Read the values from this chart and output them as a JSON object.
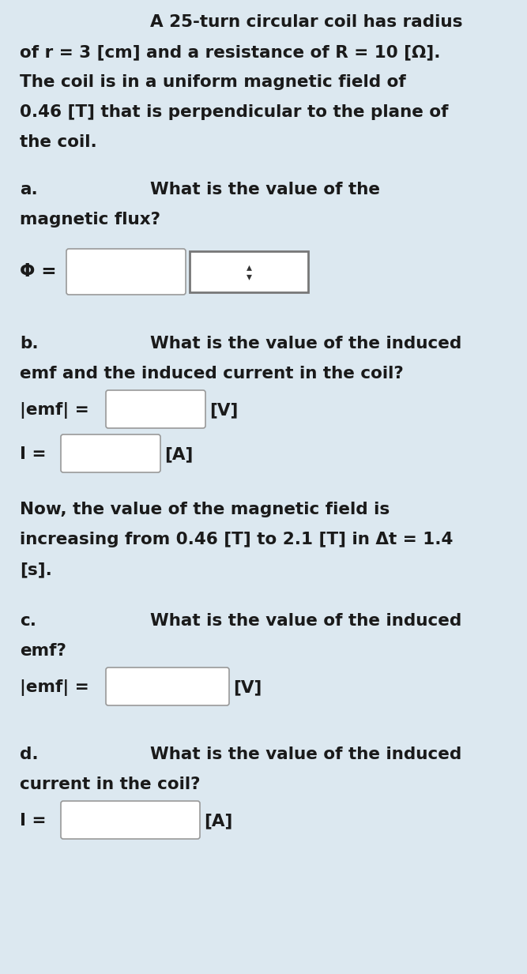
{
  "bg_color": "#dce8f0",
  "text_color": "#1a1a1a",
  "box_color": "#ffffff",
  "box_edge_color": "#999999",
  "font_size": 15.5,
  "bold_font_size": 15.5,
  "title_line1": "A 25-turn circular coil has radius",
  "title_line2": "of r = 3 [cm] and a resistance of R = 10 [Ω].",
  "title_line3": "The coil is in a uniform magnetic field of",
  "title_line4": "0.46 [T] that is perpendicular to the plane of",
  "title_line5": "the coil.",
  "a_label": "a.",
  "a_q1": "What is the value of the",
  "a_q2": "magnetic flux?",
  "phi_label": "Φ =",
  "b_label": "b.",
  "b_q1": "What is the value of the induced",
  "b_q2": "emf and the induced current in the coil?",
  "emf_label": "|emf| =",
  "v_unit": "[V]",
  "i_label": "I =",
  "a_unit": "[A]",
  "bold_line1": "Now, the value of the magnetic field is",
  "bold_line2": "increasing from 0.46 [T] to 2.1 [T] in Δt = 1.4",
  "bold_line3": "[s].",
  "c_label": "c.",
  "c_q1": "What is the value of the induced",
  "c_q2": "emf?",
  "d_label": "d.",
  "d_q1": "What is the value of the induced",
  "d_q2": "current in the coil?"
}
